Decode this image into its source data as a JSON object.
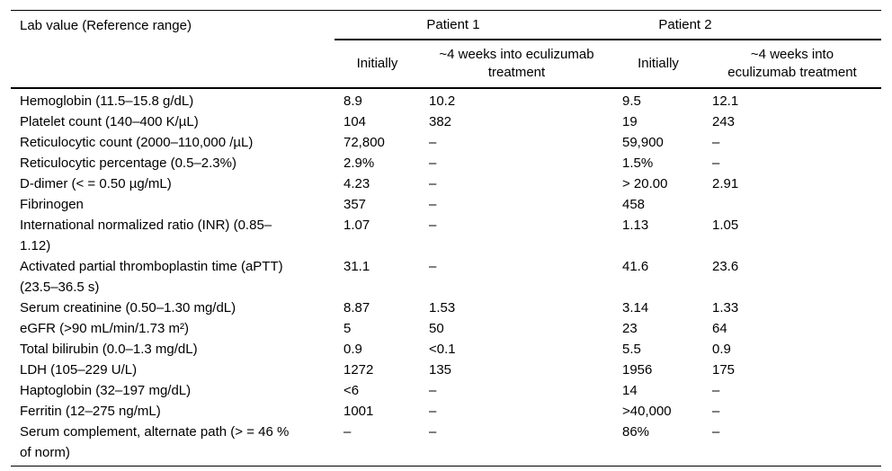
{
  "table": {
    "col1_header": "Lab value (Reference range)",
    "groups": [
      {
        "label": "Patient 1"
      },
      {
        "label": "Patient 2"
      }
    ],
    "subheaders": {
      "p1_initially": "Initially",
      "p1_weeks": "~4 weeks into eculizumab treatment",
      "p2_initially": "Initially",
      "p2_weeks": "~4 weeks into eculizumab treatment"
    },
    "rows": [
      {
        "label": "Hemoglobin (11.5–15.8 g/dL)",
        "p1_initial": "8.9",
        "p1_weeks": "10.2",
        "p2_initial": "9.5",
        "p2_weeks": "12.1"
      },
      {
        "label": "Platelet count (140–400 K/µL)",
        "p1_initial": "104",
        "p1_weeks": "382",
        "p2_initial": "19",
        "p2_weeks": "243"
      },
      {
        "label": "Reticulocytic count (2000–110,000 /µL)",
        "p1_initial": "72,800",
        "p1_weeks": "–",
        "p2_initial": "59,900",
        "p2_weeks": "–"
      },
      {
        "label": "Reticulocytic percentage (0.5–2.3%)",
        "p1_initial": "2.9%",
        "p1_weeks": "–",
        "p2_initial": "1.5%",
        "p2_weeks": "–"
      },
      {
        "label": "D-dimer (< = 0.50 µg/mL)",
        "p1_initial": "4.23",
        "p1_weeks": "–",
        "p2_initial": "> 20.00",
        "p2_weeks": "2.91"
      },
      {
        "label": "Fibrinogen",
        "p1_initial": "357",
        "p1_weeks": "–",
        "p2_initial": "458",
        "p2_weeks": ""
      },
      {
        "label": "International normalized ratio (INR) (0.85–1.12)",
        "p1_initial": "1.07",
        "p1_weeks": "–",
        "p2_initial": "1.13",
        "p2_weeks": "1.05"
      },
      {
        "label": "Activated partial thromboplastin time (aPTT) (23.5–36.5 s)",
        "p1_initial": "31.1",
        "p1_weeks": "–",
        "p2_initial": "41.6",
        "p2_weeks": "23.6"
      },
      {
        "label": "Serum creatinine (0.50–1.30 mg/dL)",
        "p1_initial": "8.87",
        "p1_weeks": "1.53",
        "p2_initial": "3.14",
        "p2_weeks": "1.33"
      },
      {
        "label": "eGFR (>90 mL/min/1.73 m²)",
        "p1_initial": "5",
        "p1_weeks": "50",
        "p2_initial": "23",
        "p2_weeks": "64"
      },
      {
        "label": "Total bilirubin (0.0–1.3 mg/dL)",
        "p1_initial": "0.9",
        "p1_weeks": "<0.1",
        "p2_initial": "5.5",
        "p2_weeks": "0.9"
      },
      {
        "label": "LDH (105–229 U/L)",
        "p1_initial": "1272",
        "p1_weeks": "135",
        "p2_initial": "1956",
        "p2_weeks": "175"
      },
      {
        "label": "Haptoglobin (32–197 mg/dL)",
        "p1_initial": "<6",
        "p1_weeks": "–",
        "p2_initial": "14",
        "p2_weeks": "–"
      },
      {
        "label": "Ferritin (12–275 ng/mL)",
        "p1_initial": "1001",
        "p1_weeks": "–",
        "p2_initial": ">40,000",
        "p2_weeks": "–"
      },
      {
        "label": "Serum complement, alternate path (> = 46 % of norm)",
        "p1_initial": "–",
        "p1_weeks": "–",
        "p2_initial": "86%",
        "p2_weeks": "–"
      }
    ]
  }
}
